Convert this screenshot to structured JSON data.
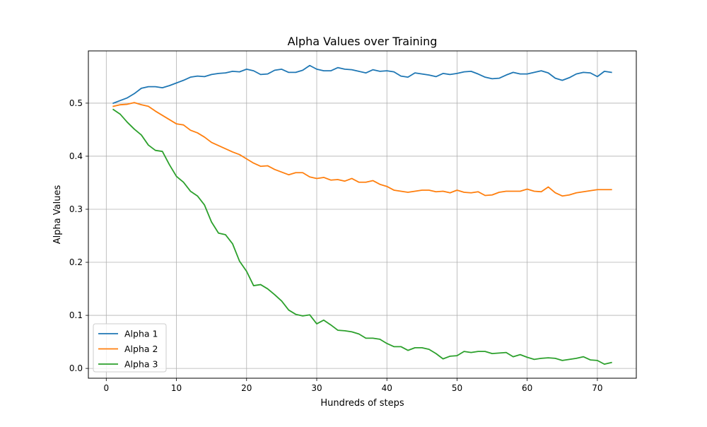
{
  "chart_data": {
    "type": "line",
    "title": "Alpha Values over Training",
    "xlabel": "Hundreds of steps",
    "ylabel": "Alpha Values",
    "xlim": [
      -2.55,
      75.55
    ],
    "ylim": [
      -0.0185,
      0.5985
    ],
    "xticks": [
      0,
      10,
      20,
      30,
      40,
      50,
      60,
      70
    ],
    "xtick_labels": [
      "0",
      "10",
      "20",
      "30",
      "40",
      "50",
      "60",
      "70"
    ],
    "yticks": [
      0.0,
      0.1,
      0.2,
      0.3,
      0.4,
      0.5
    ],
    "ytick_labels": [
      "0.0",
      "0.1",
      "0.2",
      "0.3",
      "0.4",
      "0.5"
    ],
    "grid": true,
    "legend_position": "lower-left",
    "x": [
      1,
      2,
      3,
      4,
      5,
      6,
      7,
      8,
      9,
      10,
      11,
      12,
      13,
      14,
      15,
      16,
      17,
      18,
      19,
      20,
      21,
      22,
      23,
      24,
      25,
      26,
      27,
      28,
      29,
      30,
      31,
      32,
      33,
      34,
      35,
      36,
      37,
      38,
      39,
      40,
      41,
      42,
      43,
      44,
      45,
      46,
      47,
      48,
      49,
      50,
      51,
      52,
      53,
      54,
      55,
      56,
      57,
      58,
      59,
      60,
      61,
      62,
      63,
      64,
      65,
      66,
      67,
      68,
      69,
      70,
      71,
      72
    ],
    "series": [
      {
        "name": "Alpha 1",
        "color": "#1f77b4",
        "values": [
          0.5,
          0.505,
          0.51,
          0.518,
          0.528,
          0.531,
          0.531,
          0.529,
          0.533,
          0.538,
          0.543,
          0.549,
          0.551,
          0.55,
          0.554,
          0.556,
          0.557,
          0.56,
          0.559,
          0.564,
          0.561,
          0.554,
          0.555,
          0.562,
          0.564,
          0.558,
          0.558,
          0.562,
          0.571,
          0.564,
          0.561,
          0.561,
          0.567,
          0.564,
          0.563,
          0.56,
          0.557,
          0.563,
          0.56,
          0.561,
          0.559,
          0.551,
          0.549,
          0.557,
          0.555,
          0.553,
          0.55,
          0.556,
          0.554,
          0.556,
          0.559,
          0.56,
          0.555,
          0.549,
          0.546,
          0.547,
          0.553,
          0.558,
          0.555,
          0.555,
          0.558,
          0.561,
          0.557,
          0.547,
          0.543,
          0.548,
          0.555,
          0.558,
          0.557,
          0.55,
          0.56,
          0.558
        ]
      },
      {
        "name": "Alpha 2",
        "color": "#ff7f0e",
        "values": [
          0.494,
          0.497,
          0.498,
          0.501,
          0.497,
          0.494,
          0.485,
          0.477,
          0.469,
          0.461,
          0.459,
          0.449,
          0.444,
          0.436,
          0.426,
          0.42,
          0.414,
          0.408,
          0.403,
          0.395,
          0.387,
          0.381,
          0.382,
          0.375,
          0.37,
          0.365,
          0.369,
          0.369,
          0.361,
          0.358,
          0.36,
          0.355,
          0.356,
          0.353,
          0.358,
          0.351,
          0.351,
          0.354,
          0.347,
          0.343,
          0.336,
          0.334,
          0.332,
          0.334,
          0.336,
          0.336,
          0.333,
          0.334,
          0.331,
          0.336,
          0.332,
          0.331,
          0.333,
          0.326,
          0.327,
          0.332,
          0.334,
          0.334,
          0.334,
          0.338,
          0.334,
          0.333,
          0.342,
          0.331,
          0.325,
          0.327,
          0.331,
          0.333,
          0.335,
          0.337,
          0.337,
          0.337
        ]
      },
      {
        "name": "Alpha 3",
        "color": "#2ca02c",
        "values": [
          0.488,
          0.479,
          0.464,
          0.451,
          0.44,
          0.421,
          0.411,
          0.409,
          0.384,
          0.362,
          0.351,
          0.334,
          0.325,
          0.308,
          0.276,
          0.255,
          0.252,
          0.235,
          0.202,
          0.183,
          0.156,
          0.158,
          0.15,
          0.139,
          0.127,
          0.11,
          0.102,
          0.099,
          0.101,
          0.084,
          0.091,
          0.082,
          0.072,
          0.071,
          0.069,
          0.065,
          0.057,
          0.057,
          0.055,
          0.047,
          0.041,
          0.041,
          0.034,
          0.039,
          0.039,
          0.036,
          0.028,
          0.018,
          0.023,
          0.024,
          0.032,
          0.03,
          0.032,
          0.032,
          0.028,
          0.029,
          0.03,
          0.022,
          0.026,
          0.021,
          0.017,
          0.019,
          0.02,
          0.019,
          0.015,
          0.017,
          0.019,
          0.022,
          0.016,
          0.015,
          0.008,
          0.011
        ]
      }
    ]
  }
}
